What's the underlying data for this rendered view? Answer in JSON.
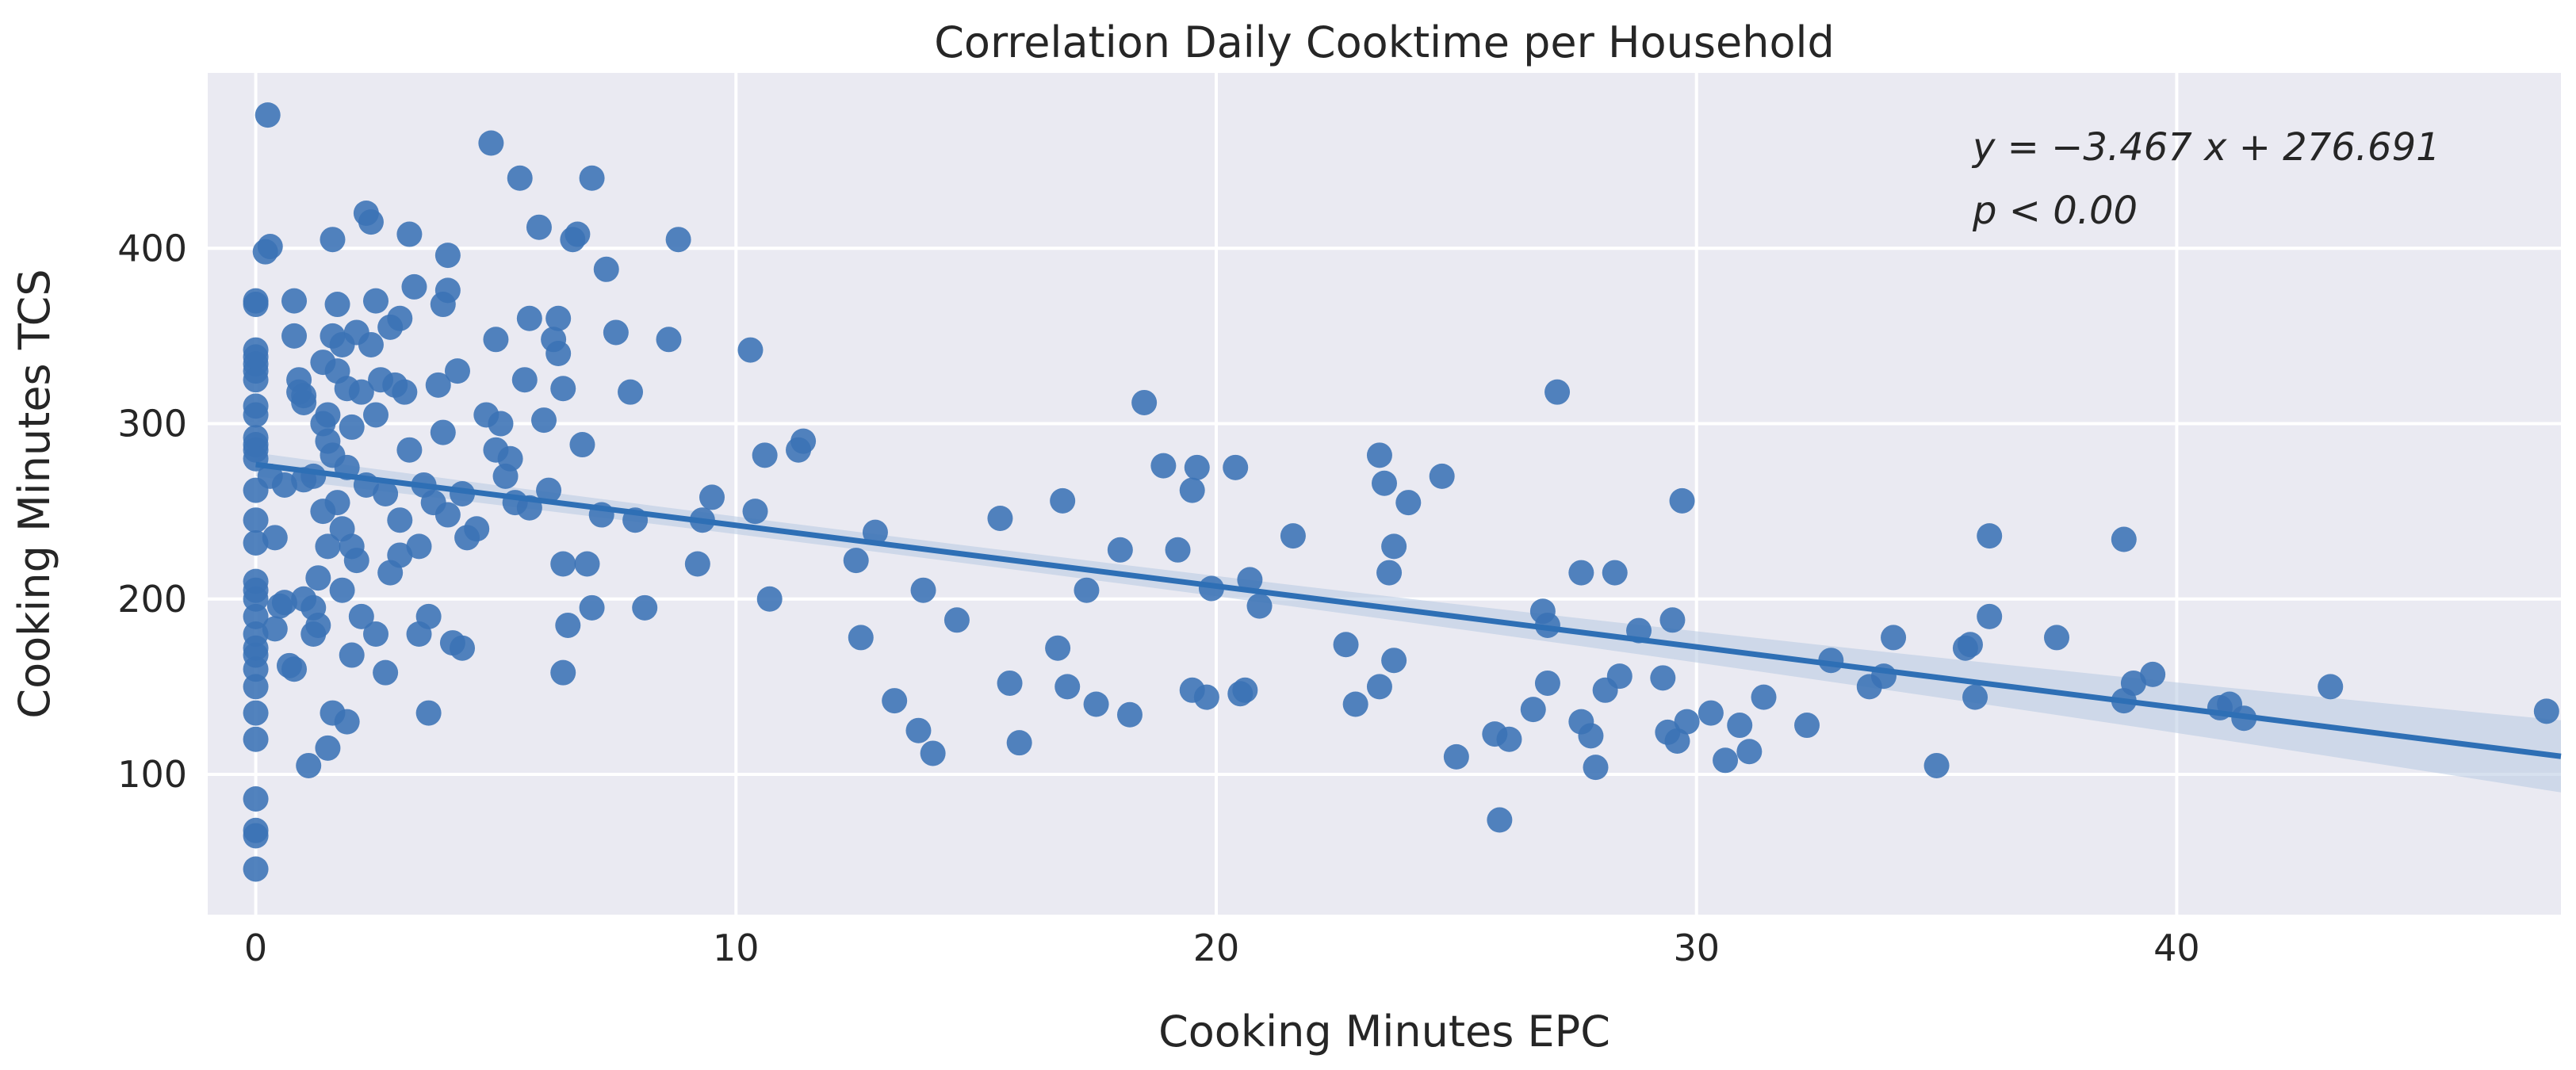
{
  "chart_data": {
    "type": "scatter",
    "title": "Correlation Daily Cooktime per Household",
    "xlabel": "Cooking Minutes EPC",
    "ylabel": "Cooking Minutes TCS",
    "xlim": [
      -1,
      48
    ],
    "ylim": [
      20,
      500
    ],
    "xticks": [
      0,
      10,
      20,
      30,
      40
    ],
    "yticks": [
      100,
      200,
      300,
      400
    ],
    "grid": true,
    "colors": {
      "points": "#3a72b5",
      "line": "#2e6fb5",
      "band": "#b7c9e2",
      "background": "#eaeaf2",
      "grid": "#ffffff"
    },
    "regression": {
      "slope": -3.467,
      "intercept": 276.691,
      "x_range": [
        0,
        48
      ]
    },
    "annotations": [
      "y = −3.467 x + 276.691",
      "p < 0.00"
    ],
    "points": [
      [
        0.25,
        476
      ],
      [
        0.3,
        401
      ],
      [
        0.2,
        398
      ],
      [
        0,
        370
      ],
      [
        0,
        368
      ],
      [
        0,
        342
      ],
      [
        0,
        338
      ],
      [
        0,
        334
      ],
      [
        0,
        330
      ],
      [
        0,
        325
      ],
      [
        0,
        310
      ],
      [
        0,
        305
      ],
      [
        0,
        292
      ],
      [
        0,
        288
      ],
      [
        0,
        285
      ],
      [
        0,
        280
      ],
      [
        0,
        262
      ],
      [
        0,
        245
      ],
      [
        0,
        232
      ],
      [
        0,
        210
      ],
      [
        0,
        205
      ],
      [
        0,
        200
      ],
      [
        0,
        190
      ],
      [
        0,
        180
      ],
      [
        0,
        172
      ],
      [
        0,
        168
      ],
      [
        0,
        160
      ],
      [
        0,
        150
      ],
      [
        0,
        135
      ],
      [
        0,
        120
      ],
      [
        0,
        86
      ],
      [
        0,
        68
      ],
      [
        0,
        65
      ],
      [
        0,
        46
      ],
      [
        0.3,
        270
      ],
      [
        0.4,
        235
      ],
      [
        0.4,
        183
      ],
      [
        0.5,
        196
      ],
      [
        0.6,
        198
      ],
      [
        0.6,
        265
      ],
      [
        0.7,
        162
      ],
      [
        0.8,
        160
      ],
      [
        0.8,
        370
      ],
      [
        0.8,
        350
      ],
      [
        0.9,
        325
      ],
      [
        0.9,
        318
      ],
      [
        1,
        312
      ],
      [
        1,
        316
      ],
      [
        1,
        268
      ],
      [
        1,
        200
      ],
      [
        1.1,
        105
      ],
      [
        1.2,
        270
      ],
      [
        1.2,
        195
      ],
      [
        1.2,
        180
      ],
      [
        1.3,
        212
      ],
      [
        1.3,
        185
      ],
      [
        1.4,
        335
      ],
      [
        1.4,
        300
      ],
      [
        1.4,
        250
      ],
      [
        1.5,
        305
      ],
      [
        1.5,
        290
      ],
      [
        1.5,
        230
      ],
      [
        1.5,
        115
      ],
      [
        1.6,
        405
      ],
      [
        1.6,
        350
      ],
      [
        1.6,
        282
      ],
      [
        1.6,
        135
      ],
      [
        1.7,
        368
      ],
      [
        1.7,
        330
      ],
      [
        1.7,
        255
      ],
      [
        1.8,
        345
      ],
      [
        1.8,
        240
      ],
      [
        1.8,
        205
      ],
      [
        1.9,
        320
      ],
      [
        1.9,
        275
      ],
      [
        1.9,
        130
      ],
      [
        2,
        298
      ],
      [
        2,
        230
      ],
      [
        2,
        168
      ],
      [
        2.1,
        352
      ],
      [
        2.1,
        222
      ],
      [
        2.2,
        318
      ],
      [
        2.2,
        190
      ],
      [
        2.3,
        420
      ],
      [
        2.3,
        265
      ],
      [
        2.4,
        415
      ],
      [
        2.4,
        345
      ],
      [
        2.5,
        370
      ],
      [
        2.5,
        305
      ],
      [
        2.5,
        180
      ],
      [
        2.6,
        325
      ],
      [
        2.7,
        260
      ],
      [
        2.7,
        158
      ],
      [
        2.8,
        355
      ],
      [
        2.8,
        215
      ],
      [
        2.9,
        322
      ],
      [
        3,
        360
      ],
      [
        3,
        245
      ],
      [
        3,
        225
      ],
      [
        3.1,
        318
      ],
      [
        3.2,
        408
      ],
      [
        3.2,
        285
      ],
      [
        3.3,
        378
      ],
      [
        3.4,
        230
      ],
      [
        3.4,
        180
      ],
      [
        3.5,
        265
      ],
      [
        3.6,
        190
      ],
      [
        3.6,
        135
      ],
      [
        3.7,
        255
      ],
      [
        3.8,
        322
      ],
      [
        3.9,
        368
      ],
      [
        3.9,
        295
      ],
      [
        4,
        396
      ],
      [
        4,
        376
      ],
      [
        4,
        248
      ],
      [
        4.1,
        175
      ],
      [
        4.2,
        330
      ],
      [
        4.3,
        260
      ],
      [
        4.3,
        172
      ],
      [
        4.4,
        235
      ],
      [
        4.6,
        240
      ],
      [
        4.8,
        305
      ],
      [
        4.9,
        460
      ],
      [
        5,
        348
      ],
      [
        5,
        285
      ],
      [
        5.1,
        300
      ],
      [
        5.2,
        270
      ],
      [
        5.3,
        280
      ],
      [
        5.4,
        255
      ],
      [
        5.5,
        440
      ],
      [
        5.6,
        325
      ],
      [
        5.7,
        360
      ],
      [
        5.7,
        252
      ],
      [
        5.9,
        412
      ],
      [
        6,
        302
      ],
      [
        6.1,
        262
      ],
      [
        6.2,
        348
      ],
      [
        6.3,
        360
      ],
      [
        6.3,
        340
      ],
      [
        6.4,
        320
      ],
      [
        6.4,
        220
      ],
      [
        6.4,
        158
      ],
      [
        6.5,
        185
      ],
      [
        6.6,
        405
      ],
      [
        6.7,
        408
      ],
      [
        6.8,
        288
      ],
      [
        6.9,
        220
      ],
      [
        7,
        440
      ],
      [
        7,
        195
      ],
      [
        7.2,
        248
      ],
      [
        7.3,
        388
      ],
      [
        7.5,
        352
      ],
      [
        7.8,
        318
      ],
      [
        7.9,
        245
      ],
      [
        8.1,
        195
      ],
      [
        8.6,
        348
      ],
      [
        8.8,
        405
      ],
      [
        9.2,
        220
      ],
      [
        9.3,
        245
      ],
      [
        9.5,
        258
      ],
      [
        10.3,
        342
      ],
      [
        10.4,
        250
      ],
      [
        10.6,
        282
      ],
      [
        10.7,
        200
      ],
      [
        11.3,
        285
      ],
      [
        11.4,
        290
      ],
      [
        12.5,
        222
      ],
      [
        12.6,
        178
      ],
      [
        12.9,
        238
      ],
      [
        13.3,
        142
      ],
      [
        13.8,
        125
      ],
      [
        13.9,
        205
      ],
      [
        14.1,
        112
      ],
      [
        14.6,
        188
      ],
      [
        15.5,
        246
      ],
      [
        15.7,
        152
      ],
      [
        15.9,
        118
      ],
      [
        16.7,
        172
      ],
      [
        16.8,
        256
      ],
      [
        16.9,
        150
      ],
      [
        17.3,
        205
      ],
      [
        17.5,
        140
      ],
      [
        18,
        228
      ],
      [
        18.2,
        134
      ],
      [
        18.5,
        312
      ],
      [
        18.9,
        276
      ],
      [
        19.2,
        228
      ],
      [
        19.5,
        148
      ],
      [
        19.5,
        262
      ],
      [
        19.6,
        275
      ],
      [
        19.8,
        144
      ],
      [
        19.9,
        206
      ],
      [
        20.4,
        275
      ],
      [
        20.5,
        146
      ],
      [
        20.6,
        148
      ],
      [
        20.7,
        211
      ],
      [
        20.9,
        196
      ],
      [
        21.6,
        236
      ],
      [
        22.7,
        174
      ],
      [
        22.9,
        140
      ],
      [
        23.4,
        282
      ],
      [
        23.4,
        150
      ],
      [
        23.5,
        266
      ],
      [
        23.6,
        215
      ],
      [
        23.7,
        230
      ],
      [
        23.7,
        165
      ],
      [
        24,
        255
      ],
      [
        24.7,
        270
      ],
      [
        25,
        110
      ],
      [
        25.8,
        123
      ],
      [
        25.9,
        74
      ],
      [
        26.1,
        120
      ],
      [
        26.6,
        137
      ],
      [
        26.8,
        193
      ],
      [
        26.9,
        152
      ],
      [
        26.9,
        185
      ],
      [
        27.1,
        318
      ],
      [
        27.6,
        215
      ],
      [
        27.6,
        130
      ],
      [
        27.8,
        122
      ],
      [
        27.9,
        104
      ],
      [
        28.1,
        148
      ],
      [
        28.3,
        215
      ],
      [
        28.4,
        156
      ],
      [
        28.8,
        182
      ],
      [
        29.3,
        155
      ],
      [
        29.4,
        124
      ],
      [
        29.5,
        188
      ],
      [
        29.6,
        119
      ],
      [
        29.7,
        256
      ],
      [
        29.8,
        130
      ],
      [
        30.3,
        135
      ],
      [
        30.6,
        108
      ],
      [
        30.9,
        128
      ],
      [
        31.1,
        113
      ],
      [
        31.4,
        144
      ],
      [
        32.3,
        128
      ],
      [
        32.8,
        165
      ],
      [
        33.6,
        150
      ],
      [
        33.9,
        156
      ],
      [
        34.1,
        178
      ],
      [
        35,
        105
      ],
      [
        35.6,
        172
      ],
      [
        35.7,
        174
      ],
      [
        35.8,
        144
      ],
      [
        36.1,
        190
      ],
      [
        36.1,
        236
      ],
      [
        37.5,
        178
      ],
      [
        38.9,
        234
      ],
      [
        38.9,
        142
      ],
      [
        39.1,
        152
      ],
      [
        39.5,
        157
      ],
      [
        40.9,
        138
      ],
      [
        41.1,
        140
      ],
      [
        41.4,
        132
      ],
      [
        43.2,
        150
      ],
      [
        47.7,
        136
      ]
    ]
  }
}
